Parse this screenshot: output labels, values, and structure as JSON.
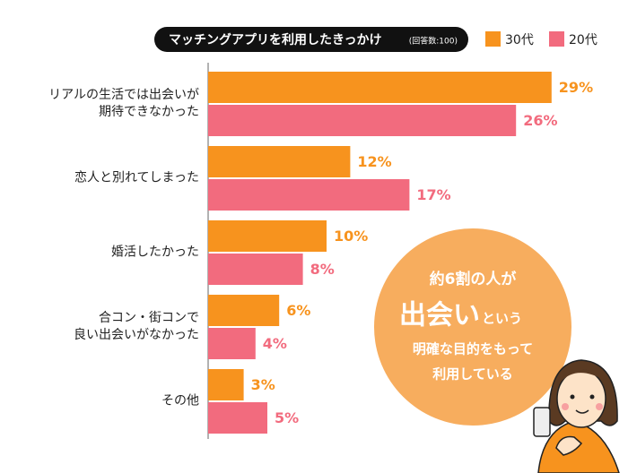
{
  "chart_data": {
    "type": "bar",
    "orientation": "horizontal",
    "title": "マッチングアプリを利用したきっかけ",
    "note": "(回答数:100)",
    "categories": [
      "リアルの生活では出会いが\n期待できなかった",
      "恋人と別れてしまった",
      "婚活したかった",
      "合コン・街コンで\n良い出会いがなかった",
      "その他"
    ],
    "series": [
      {
        "name": "30代",
        "color": "#f7931e",
        "values": [
          29,
          12,
          10,
          6,
          3
        ],
        "value_labels": [
          "29%",
          "12%",
          "10%",
          "6%",
          "3%"
        ]
      },
      {
        "name": "20代",
        "color": "#f26b7e",
        "values": [
          26,
          17,
          8,
          4,
          5
        ],
        "value_labels": [
          "26%",
          "17%",
          "8%",
          "4%",
          "5%"
        ]
      }
    ],
    "callout": {
      "line1": "約6割の人が",
      "line2_big": "出会い",
      "line2_small": "という",
      "line3": "明確な目的をもって",
      "line4": "利用している"
    }
  }
}
